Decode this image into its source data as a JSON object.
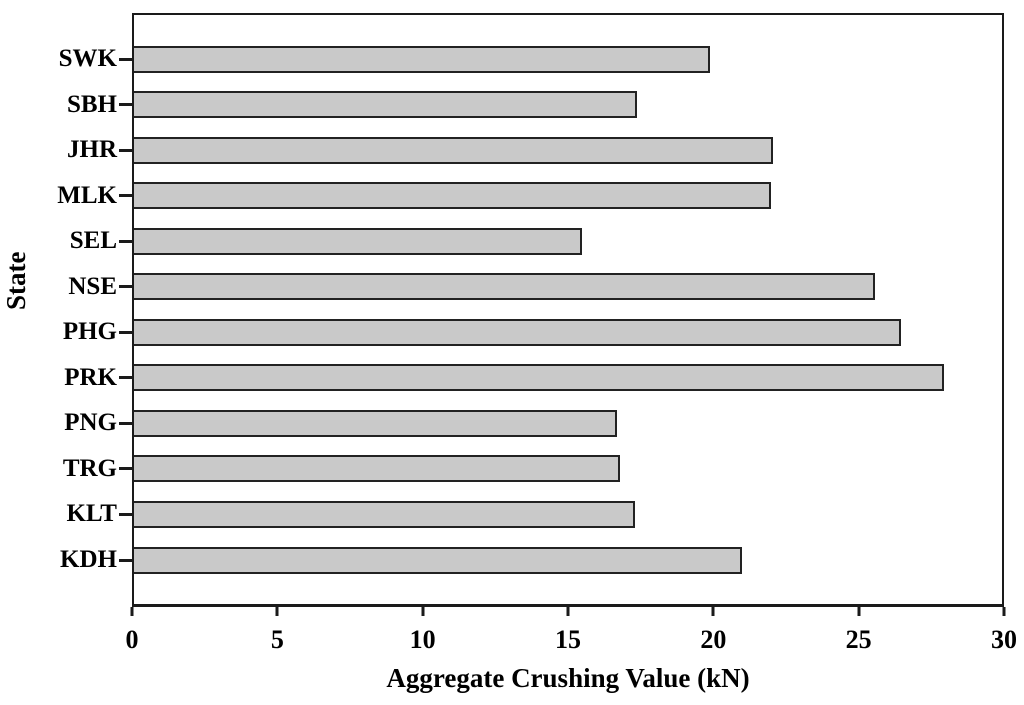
{
  "chart_data": {
    "type": "bar",
    "orientation": "horizontal",
    "title": "",
    "xlabel": "Aggregate Crushing Value (kN)",
    "ylabel": "State",
    "categories": [
      "SWK",
      "SBH",
      "JHR",
      "MLK",
      "SEL",
      "NSE",
      "PHG",
      "PRK",
      "PNG",
      "TRG",
      "KLT",
      "KDH"
    ],
    "values": [
      19.9,
      17.4,
      22.1,
      22.0,
      15.5,
      25.6,
      26.5,
      28.0,
      16.7,
      16.8,
      17.3,
      21.0
    ],
    "xlim": [
      0,
      30
    ],
    "xticks": [
      0,
      5,
      10,
      15,
      20,
      25,
      30
    ],
    "grid": false,
    "legend": null,
    "bar_fill_color": "#c9c9c9",
    "bar_border_color": "#222222",
    "axis_color": "#1a1a1a",
    "background_color": "#ffffff"
  }
}
